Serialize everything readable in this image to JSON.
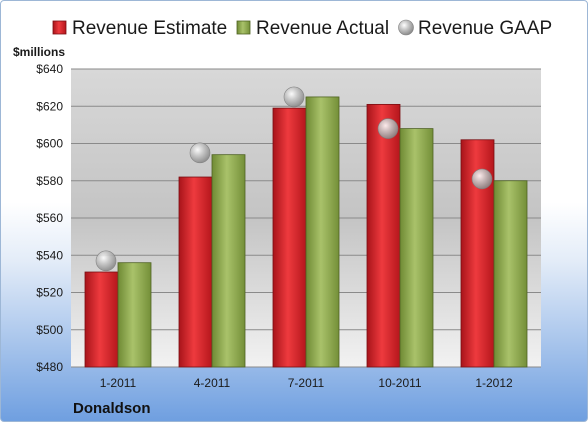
{
  "chart_data": {
    "type": "bar",
    "title": "",
    "ylabel": "$millions",
    "xlabel": "",
    "company": "Donaldson",
    "categories": [
      "1-2011",
      "4-2011",
      "7-2011",
      "10-2011",
      "1-2012"
    ],
    "series": [
      {
        "name": "Revenue Estimate",
        "mark": "bar",
        "color": "#cc1f25",
        "values": [
          531,
          582,
          619,
          621,
          602
        ]
      },
      {
        "name": "Revenue Actual",
        "mark": "bar",
        "color": "#8aa64a",
        "values": [
          536,
          594,
          625,
          608,
          580
        ]
      },
      {
        "name": "Revenue GAAP",
        "mark": "point",
        "color": "#b8b8b8",
        "values": [
          537,
          595,
          625,
          608,
          581
        ]
      }
    ],
    "ylim": [
      480,
      640
    ],
    "yticks": [
      "$480",
      "$500",
      "$520",
      "$540",
      "$560",
      "$580",
      "$600",
      "$620",
      "$640"
    ],
    "grid": true,
    "legend_position": "top"
  }
}
